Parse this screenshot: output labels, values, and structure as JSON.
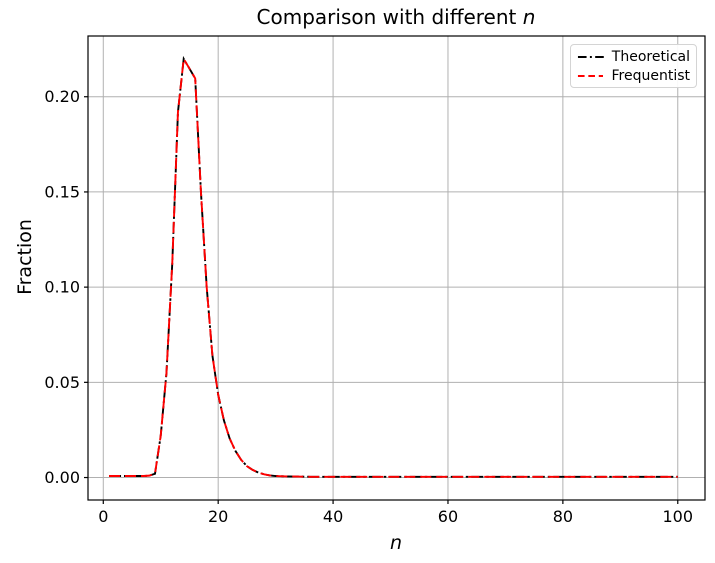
{
  "chart_data": {
    "type": "line",
    "title_prefix": "Comparison with different ",
    "title_math": "n",
    "xlabel": "n",
    "ylabel": "Fraction",
    "grid": true,
    "legend_position": "upper right",
    "xlim": [
      -2.66,
      104.74
    ],
    "ylim": [
      -0.0118,
      0.2319
    ],
    "xtick_values": [
      0,
      20,
      40,
      60,
      80,
      100
    ],
    "xtick_labels": [
      "0",
      "20",
      "40",
      "60",
      "80",
      "100"
    ],
    "ytick_values": [
      0.0,
      0.05,
      0.1,
      0.15,
      0.2
    ],
    "ytick_labels": [
      "0.00",
      "0.05",
      "0.10",
      "0.15",
      "0.20"
    ],
    "colors": {
      "grid": "#b0b0b0",
      "spine": "#000000",
      "theoretical": "#000000",
      "frequentist": "#ff0000"
    },
    "x": [
      1,
      2,
      3,
      4,
      5,
      6,
      7,
      8,
      9,
      10,
      11,
      12,
      13,
      14,
      15,
      16,
      17,
      18,
      19,
      20,
      21,
      22,
      23,
      24,
      25,
      26,
      27,
      28,
      29,
      30,
      32,
      34,
      36,
      40,
      45,
      50,
      55,
      60,
      65,
      70,
      75,
      80,
      85,
      90,
      95,
      100
    ],
    "series": [
      {
        "name": "Theoretical",
        "color": "#000000",
        "linestyle": "dashdot",
        "values": [
          0.0008,
          0.0008,
          0.0008,
          0.0008,
          0.0008,
          0.0008,
          0.0008,
          0.001,
          0.002,
          0.022,
          0.055,
          0.112,
          0.192,
          0.2199,
          0.2148,
          0.2096,
          0.15,
          0.1,
          0.064,
          0.0435,
          0.03,
          0.0205,
          0.014,
          0.0093,
          0.006,
          0.004,
          0.0026,
          0.0017,
          0.0011,
          0.0008,
          0.0006,
          0.0005,
          0.0004,
          0.0004,
          0.0004,
          0.0004,
          0.0004,
          0.0004,
          0.0004,
          0.0004,
          0.0004,
          0.0004,
          0.0004,
          0.0004,
          0.0004,
          0.0004
        ]
      },
      {
        "name": "Frequentist",
        "color": "#ff0000",
        "linestyle": "dashed",
        "values": [
          0.0008,
          0.0008,
          0.0008,
          0.0008,
          0.0008,
          0.0008,
          0.0008,
          0.001,
          0.002,
          0.022,
          0.055,
          0.112,
          0.192,
          0.2199,
          0.2148,
          0.2096,
          0.15,
          0.1,
          0.064,
          0.0435,
          0.03,
          0.0205,
          0.014,
          0.0093,
          0.006,
          0.004,
          0.0026,
          0.0017,
          0.0011,
          0.0008,
          0.0006,
          0.0005,
          0.0004,
          0.0004,
          0.0004,
          0.0004,
          0.0004,
          0.0004,
          0.0004,
          0.0004,
          0.0004,
          0.0004,
          0.0004,
          0.0004,
          0.0004,
          0.0004
        ]
      }
    ],
    "peak": {
      "n": 14,
      "fraction": 0.22
    }
  }
}
